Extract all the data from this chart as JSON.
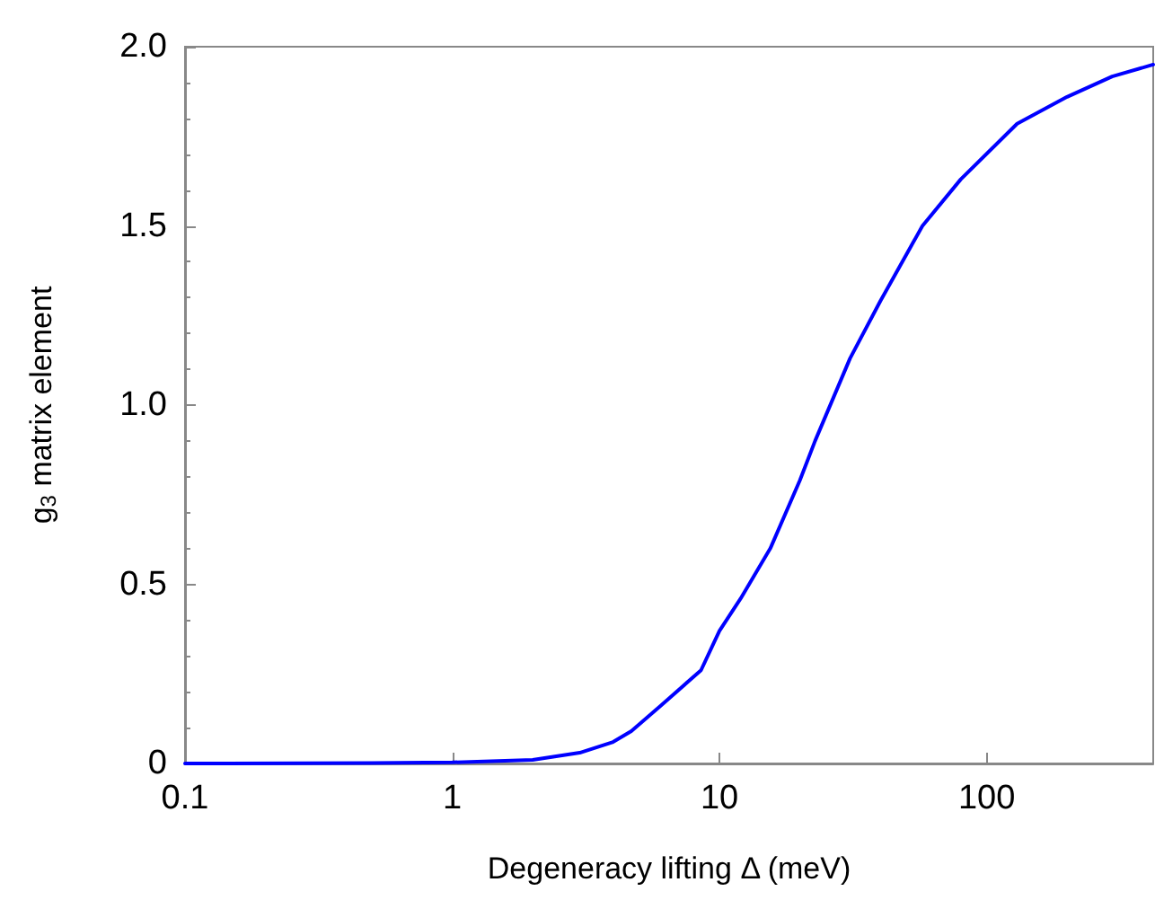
{
  "chart_data": {
    "type": "line",
    "xlabel": "Degeneracy lifting Δ (meV)",
    "ylabel": "g$_{3}$ matrix element",
    "log": "x",
    "grid": false,
    "marker": "none",
    "line_style": "solid",
    "xlim": [
      0.1,
      420
    ],
    "xticks": [
      0.1,
      1,
      10,
      100
    ],
    "ylim": [
      0,
      2
    ],
    "yticks": [
      0,
      {
        "value": 0.5,
        "label": "0.5"
      },
      {
        "value": 1,
        "label": "1.0"
      },
      {
        "value": 1.5,
        "label": "1.5"
      },
      {
        "value": 2,
        "label": "2.0"
      }
    ],
    "series": [
      {
        "color": "#0000ff",
        "x": [
          0.1,
          0.5,
          1,
          2,
          3,
          4,
          4.68,
          6,
          8.53,
          10,
          12,
          15.5,
          20,
          22.8,
          30.8,
          40,
          57.5,
          80,
          130,
          200,
          295,
          420
        ],
        "values": [
          0,
          0.001,
          0.003,
          0.01,
          0.03,
          0.06,
          0.09,
          0.16,
          0.26,
          0.37,
          0.46,
          0.6,
          0.79,
          0.9,
          1.13,
          1.29,
          1.5,
          1.63,
          1.785,
          1.86,
          1.917,
          1.95
        ]
      }
    ]
  }
}
